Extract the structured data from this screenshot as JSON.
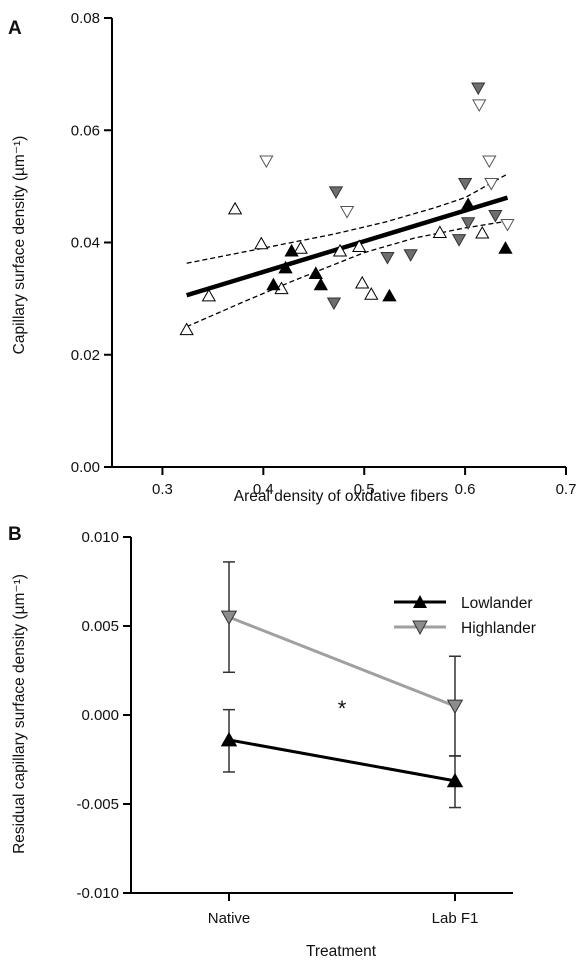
{
  "colors": {
    "lowlander": "#000000",
    "highlander_line": "#a0a0a0",
    "highlander_marker": "#8c8c8c",
    "open_marker_fill": "#ffffff"
  },
  "chart_data": [
    {
      "panel": "A",
      "type": "scatter",
      "xlabel": "Areal density of oxidative fibers",
      "ylabel": "Capillary surface density (µm⁻¹)",
      "xlim": [
        0.25,
        0.7
      ],
      "ylim": [
        0.0,
        0.08
      ],
      "xticks": [
        0.3,
        0.4,
        0.5,
        0.6,
        0.7
      ],
      "yticks": [
        0.0,
        0.02,
        0.04,
        0.06,
        0.08
      ],
      "xtick_labels": [
        "0.3",
        "0.4",
        "0.5",
        "0.6",
        "0.7"
      ],
      "ytick_labels": [
        "0.00",
        "0.02",
        "0.04",
        "0.06",
        "0.08"
      ],
      "series": [
        {
          "marker": "triangle-up-open",
          "points": [
            [
              0.324,
              0.0245
            ],
            [
              0.346,
              0.0305
            ],
            [
              0.372,
              0.046
            ],
            [
              0.398,
              0.0398
            ],
            [
              0.418,
              0.0318
            ],
            [
              0.437,
              0.039
            ],
            [
              0.476,
              0.0385
            ],
            [
              0.495,
              0.0393
            ],
            [
              0.498,
              0.0328
            ],
            [
              0.507,
              0.0308
            ],
            [
              0.575,
              0.0418
            ],
            [
              0.617,
              0.0417
            ]
          ]
        },
        {
          "marker": "triangle-up-filled",
          "points": [
            [
              0.41,
              0.0325
            ],
            [
              0.422,
              0.0355
            ],
            [
              0.428,
              0.0385
            ],
            [
              0.452,
              0.0345
            ],
            [
              0.457,
              0.0325
            ],
            [
              0.525,
              0.0305
            ],
            [
              0.603,
              0.0468
            ],
            [
              0.64,
              0.039
            ]
          ]
        },
        {
          "marker": "triangle-down-open",
          "points": [
            [
              0.403,
              0.0545
            ],
            [
              0.483,
              0.0455
            ],
            [
              0.614,
              0.0645
            ],
            [
              0.624,
              0.0545
            ],
            [
              0.626,
              0.0505
            ],
            [
              0.642,
              0.0432
            ]
          ]
        },
        {
          "marker": "triangle-down-filled",
          "points": [
            [
              0.472,
              0.049
            ],
            [
              0.47,
              0.0292
            ],
            [
              0.523,
              0.0373
            ],
            [
              0.546,
              0.0378
            ],
            [
              0.594,
              0.0405
            ],
            [
              0.6,
              0.0505
            ],
            [
              0.603,
              0.0435
            ],
            [
              0.613,
              0.0675
            ],
            [
              0.63,
              0.0448
            ]
          ]
        }
      ],
      "fit_line": [
        [
          0.324,
          0.0306
        ],
        [
          0.642,
          0.048
        ]
      ],
      "ci_upper": [
        [
          0.324,
          0.0363
        ],
        [
          0.4,
          0.039
        ],
        [
          0.47,
          0.0415
        ],
        [
          0.52,
          0.0436
        ],
        [
          0.57,
          0.0462
        ],
        [
          0.6,
          0.048
        ],
        [
          0.642,
          0.0522
        ]
      ],
      "ci_lower": [
        [
          0.324,
          0.025
        ],
        [
          0.38,
          0.0294
        ],
        [
          0.43,
          0.0332
        ],
        [
          0.5,
          0.0382
        ],
        [
          0.55,
          0.0408
        ],
        [
          0.6,
          0.0426
        ],
        [
          0.642,
          0.0438
        ]
      ]
    },
    {
      "panel": "B",
      "type": "line",
      "xlabel": "Treatment",
      "ylabel": "Residual capillary surface density (µm⁻¹)",
      "categories": [
        "Native",
        "Lab F1"
      ],
      "ylim": [
        -0.01,
        0.01
      ],
      "yticks": [
        -0.01,
        -0.005,
        0.0,
        0.005,
        0.01
      ],
      "ytick_labels": [
        "-0.010",
        "-0.005",
        "0.000",
        "0.005",
        "0.010"
      ],
      "legend_position": "top-right",
      "series": [
        {
          "name": "Lowlander",
          "values": [
            -0.0014,
            -0.0037
          ],
          "err_upper": [
            0.0003,
            -0.0023
          ],
          "err_lower": [
            -0.0032,
            -0.0052
          ]
        },
        {
          "name": "Highlander",
          "values": [
            0.0055,
            0.0005
          ],
          "err_upper": [
            0.0086,
            0.0033
          ],
          "err_lower": [
            0.0024,
            -0.0023
          ]
        }
      ],
      "annotation": "*"
    }
  ]
}
